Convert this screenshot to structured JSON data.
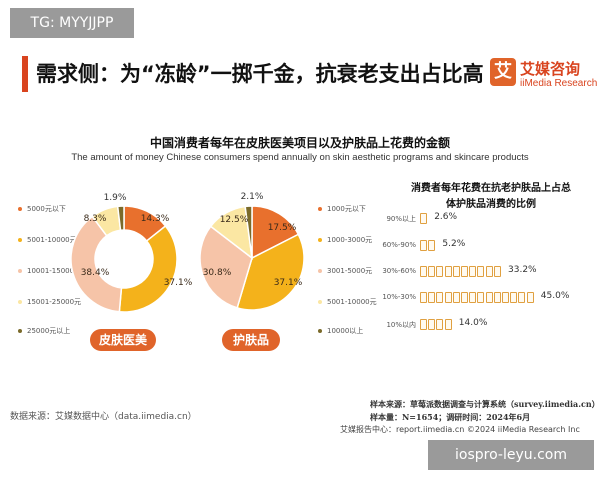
{
  "badge": "TG: MYYJJPP",
  "header": {
    "title": "需求侧：为“冻龄”一掷千金，抗衰老支出占比高",
    "logo_char": "艾",
    "logo_cn": "艾媒咨询",
    "logo_en": "iiMedia Research"
  },
  "colors": {
    "accent": "#d9441f",
    "slice_colors": [
      "#e8702d",
      "#f4b21b",
      "#f6c4a8",
      "#fbe7a3",
      "#7a6a2a"
    ]
  },
  "chart_data": [
    {
      "type": "pie",
      "title": "中国消费者每年在皮肤医美项目以及护肤品上花费的金额",
      "subtitle": "The amount of money Chinese consumers spend annually on skin aesthetic programs and skincare products",
      "donut": true,
      "name": "皮肤医美",
      "categories": [
        "5000元以下",
        "5001-10000元",
        "10001-15000元",
        "15001-25000元",
        "25000元以上"
      ],
      "values": [
        14.3,
        37.1,
        38.4,
        8.3,
        1.9
      ],
      "value_labels": [
        "14.3%",
        "37.1%",
        "38.4%",
        "8.3%",
        "1.9%"
      ],
      "legend_position": "left"
    },
    {
      "type": "pie",
      "donut": false,
      "name": "护肤品",
      "categories": [
        "1000元以下",
        "1000-3000元",
        "3001-5000元",
        "5001-10000元",
        "10000以上"
      ],
      "values": [
        17.5,
        37.1,
        30.8,
        12.5,
        2.1
      ],
      "value_labels": [
        "17.5%",
        "37.1%",
        "30.8%",
        "12.5%",
        "2.1%"
      ],
      "legend_position": "left"
    },
    {
      "type": "bar",
      "orientation": "horizontal",
      "title": "消费者每年花费在抗老护肤品上占总体护肤品消费的比例",
      "title_lines": [
        "消费者每年花费在抗老护肤品上占总",
        "体护肤品消费的比例"
      ],
      "categories": [
        "90%以上",
        "60%-90%",
        "30%-60%",
        "10%-30%",
        "10%以内"
      ],
      "values": [
        2.6,
        5.2,
        33.2,
        45.0,
        14.0
      ],
      "value_labels": [
        "2.6%",
        "5.2%",
        "33.2%",
        "45.0%",
        "14.0%"
      ]
    }
  ],
  "footer": {
    "data_source": "数据来源：艾媒数据中心（data.iimedia.cn）",
    "sample_source": "样本来源：草莓派数据调查与计算系统（survey.iimedia.cn）",
    "sample_size": "样本量：N=1654；调研时间：2024年6月",
    "report_center": "艾媒报告中心：report.iimedia.cn     ©2024  iiMedia Research  Inc"
  },
  "watermark": "iospro-leyu.com"
}
